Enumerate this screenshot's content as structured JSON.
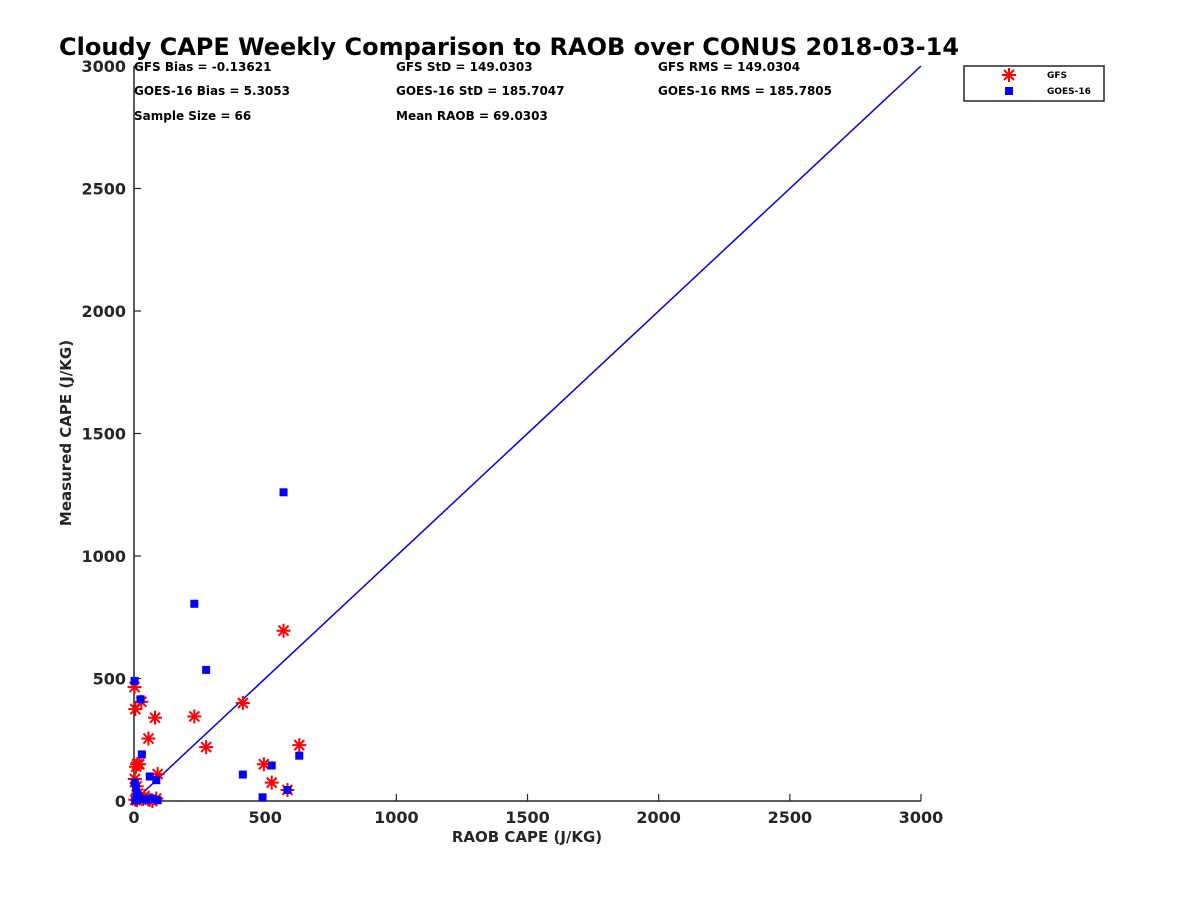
{
  "chart_data": {
    "type": "scatter",
    "title": "Cloudy CAPE Weekly Comparison to RAOB over CONUS 2018-03-14",
    "xlabel": "RAOB CAPE (J/KG)",
    "ylabel": "Measured CAPE (J/KG)",
    "xlim": [
      0,
      3000
    ],
    "ylim": [
      0,
      3000
    ],
    "xticks": [
      0,
      500,
      1000,
      1500,
      2000,
      2500,
      3000
    ],
    "yticks": [
      0,
      500,
      1000,
      1500,
      2000,
      2500,
      3000
    ],
    "grid": false,
    "legend_position": "top-right",
    "stats": [
      [
        "GFS Bias = -0.13621",
        "GFS StD = 149.0303",
        "GFS RMS = 149.0304"
      ],
      [
        "GOES-16 Bias = 5.3053",
        "GOES-16 StD = 185.7047",
        "GOES-16 RMS = 185.7805"
      ],
      [
        "Sample Size = 66",
        "Mean RAOB = 69.0303",
        ""
      ]
    ],
    "reference_line": {
      "x": [
        0,
        3000
      ],
      "y": [
        0,
        3000
      ],
      "color": "#0000e6"
    },
    "series": [
      {
        "name": "GFS",
        "marker": "asterisk",
        "color": "#ff0000",
        "points": [
          [
            2,
            465
          ],
          [
            5,
            375
          ],
          [
            8,
            140
          ],
          [
            12,
            150
          ],
          [
            20,
            150
          ],
          [
            28,
            405
          ],
          [
            55,
            255
          ],
          [
            80,
            340
          ],
          [
            90,
            110
          ],
          [
            230,
            345
          ],
          [
            275,
            220
          ],
          [
            415,
            400
          ],
          [
            495,
            150
          ],
          [
            525,
            75
          ],
          [
            570,
            695
          ],
          [
            585,
            45
          ],
          [
            630,
            228
          ],
          [
            3,
            90
          ],
          [
            10,
            60
          ],
          [
            15,
            30
          ],
          [
            22,
            15
          ],
          [
            35,
            8
          ],
          [
            60,
            5
          ],
          [
            85,
            10
          ],
          [
            5,
            5
          ],
          [
            12,
            3
          ],
          [
            40,
            20
          ],
          [
            70,
            0
          ]
        ]
      },
      {
        "name": "GOES-16",
        "marker": "square",
        "color": "#0000ff",
        "points": [
          [
            2,
            490
          ],
          [
            25,
            415
          ],
          [
            30,
            190
          ],
          [
            60,
            100
          ],
          [
            85,
            85
          ],
          [
            230,
            805
          ],
          [
            275,
            535
          ],
          [
            415,
            108
          ],
          [
            490,
            15
          ],
          [
            525,
            145
          ],
          [
            570,
            1260
          ],
          [
            585,
            45
          ],
          [
            630,
            185
          ],
          [
            3,
            75
          ],
          [
            8,
            55
          ],
          [
            10,
            30
          ],
          [
            15,
            20
          ],
          [
            20,
            12
          ],
          [
            35,
            8
          ],
          [
            50,
            5
          ],
          [
            70,
            10
          ],
          [
            90,
            3
          ],
          [
            5,
            2
          ],
          [
            12,
            5
          ]
        ]
      }
    ]
  }
}
